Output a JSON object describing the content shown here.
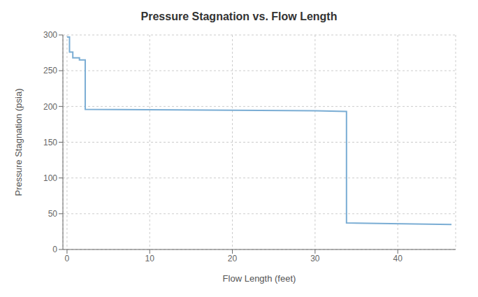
{
  "chart_data": {
    "type": "line",
    "title": "Pressure Stagnation vs. Flow Length",
    "xlabel": "Flow Length (feet)",
    "ylabel": "Pressure Stagnation (psia)",
    "x": [
      0,
      0.3,
      0.3,
      0.7,
      0.7,
      1.5,
      1.5,
      2.2,
      2.2,
      30.0,
      30.0,
      33.8,
      33.8,
      46.5
    ],
    "values": [
      297,
      297,
      276,
      276,
      268,
      268,
      265,
      265,
      196,
      194,
      194,
      193,
      37,
      35
    ],
    "color": "#7aadd4",
    "xlim": [
      -0.5,
      47
    ],
    "ylim": [
      0,
      300
    ],
    "xticks": [
      0,
      10,
      20,
      30,
      40
    ],
    "yticks": [
      0,
      50,
      100,
      150,
      200,
      250,
      300
    ],
    "grid": true
  }
}
